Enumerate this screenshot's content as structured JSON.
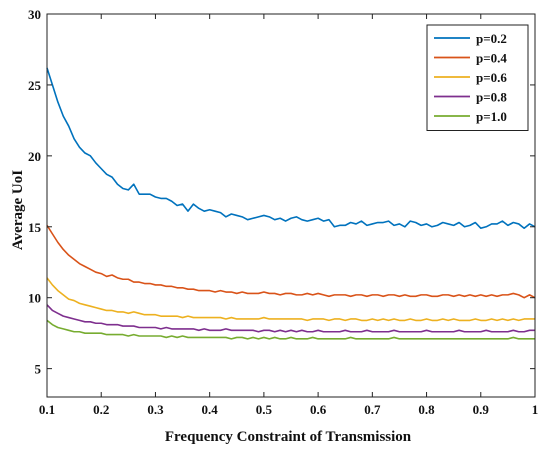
{
  "chart_data": {
    "type": "line",
    "xlabel": "Frequency Constraint of Transmission",
    "ylabel": "Average UoI",
    "xlim": [
      0.1,
      1.0
    ],
    "ylim": [
      3,
      30
    ],
    "x_ticks": [
      0.1,
      0.2,
      0.3,
      0.4,
      0.5,
      0.6,
      0.7,
      0.8,
      0.9,
      1.0
    ],
    "x_tick_labels": [
      "0.1",
      "0.2",
      "0.3",
      "0.4",
      "0.5",
      "0.6",
      "0.7",
      "0.8",
      "0.9",
      "1"
    ],
    "y_ticks": [
      5,
      10,
      15,
      20,
      25,
      30
    ],
    "y_tick_labels": [
      "5",
      "10",
      "15",
      "20",
      "25",
      "30"
    ],
    "grid": false,
    "legend_position": "top-right",
    "x": [
      0.1,
      0.11,
      0.12,
      0.13,
      0.14,
      0.15,
      0.16,
      0.17,
      0.18,
      0.19,
      0.2,
      0.21,
      0.22,
      0.23,
      0.24,
      0.25,
      0.26,
      0.27,
      0.28,
      0.29,
      0.3,
      0.31,
      0.32,
      0.33,
      0.34,
      0.35,
      0.36,
      0.37,
      0.38,
      0.39,
      0.4,
      0.41,
      0.42,
      0.43,
      0.44,
      0.45,
      0.46,
      0.47,
      0.48,
      0.49,
      0.5,
      0.51,
      0.52,
      0.53,
      0.54,
      0.55,
      0.56,
      0.57,
      0.58,
      0.59,
      0.6,
      0.61,
      0.62,
      0.63,
      0.64,
      0.65,
      0.66,
      0.67,
      0.68,
      0.69,
      0.7,
      0.71,
      0.72,
      0.73,
      0.74,
      0.75,
      0.76,
      0.77,
      0.78,
      0.79,
      0.8,
      0.81,
      0.82,
      0.83,
      0.84,
      0.85,
      0.86,
      0.87,
      0.88,
      0.89,
      0.9,
      0.91,
      0.92,
      0.93,
      0.94,
      0.95,
      0.96,
      0.97,
      0.98,
      0.99,
      1.0
    ],
    "series": [
      {
        "name": "p=0.2",
        "color": "#0072BD",
        "values": [
          26.2,
          25.0,
          23.8,
          22.8,
          22.1,
          21.2,
          20.6,
          20.2,
          20.0,
          19.5,
          19.1,
          18.7,
          18.5,
          18.0,
          17.7,
          17.6,
          18.0,
          17.3,
          17.3,
          17.3,
          17.1,
          17.0,
          17.0,
          16.8,
          16.5,
          16.6,
          16.1,
          16.6,
          16.3,
          16.1,
          16.2,
          16.1,
          16.0,
          15.7,
          15.9,
          15.8,
          15.7,
          15.5,
          15.6,
          15.7,
          15.8,
          15.7,
          15.5,
          15.6,
          15.4,
          15.6,
          15.7,
          15.5,
          15.4,
          15.5,
          15.6,
          15.4,
          15.5,
          15.0,
          15.1,
          15.1,
          15.3,
          15.2,
          15.4,
          15.1,
          15.2,
          15.3,
          15.3,
          15.4,
          15.1,
          15.2,
          15.0,
          15.4,
          15.3,
          15.1,
          15.2,
          15.0,
          15.1,
          15.3,
          15.2,
          15.1,
          15.3,
          15.0,
          15.1,
          15.3,
          14.9,
          15.0,
          15.2,
          15.2,
          15.4,
          15.1,
          15.3,
          15.2,
          14.9,
          15.2,
          15.0
        ]
      },
      {
        "name": "p=0.4",
        "color": "#D95319",
        "values": [
          15.1,
          14.5,
          13.9,
          13.4,
          13.0,
          12.7,
          12.4,
          12.2,
          12.0,
          11.8,
          11.7,
          11.5,
          11.6,
          11.4,
          11.3,
          11.3,
          11.1,
          11.1,
          11.0,
          11.0,
          10.9,
          10.9,
          10.8,
          10.8,
          10.7,
          10.7,
          10.6,
          10.6,
          10.5,
          10.5,
          10.5,
          10.4,
          10.5,
          10.4,
          10.4,
          10.3,
          10.4,
          10.3,
          10.3,
          10.3,
          10.4,
          10.3,
          10.3,
          10.2,
          10.3,
          10.3,
          10.2,
          10.2,
          10.3,
          10.2,
          10.3,
          10.2,
          10.1,
          10.2,
          10.2,
          10.2,
          10.1,
          10.2,
          10.2,
          10.1,
          10.2,
          10.2,
          10.1,
          10.2,
          10.2,
          10.1,
          10.2,
          10.1,
          10.1,
          10.2,
          10.2,
          10.1,
          10.1,
          10.2,
          10.2,
          10.1,
          10.2,
          10.1,
          10.2,
          10.1,
          10.2,
          10.1,
          10.2,
          10.1,
          10.2,
          10.2,
          10.3,
          10.2,
          10.0,
          10.2,
          10.0
        ]
      },
      {
        "name": "p=0.6",
        "color": "#EDB120",
        "values": [
          11.4,
          10.9,
          10.5,
          10.2,
          9.9,
          9.8,
          9.6,
          9.5,
          9.4,
          9.3,
          9.2,
          9.1,
          9.1,
          9.0,
          9.0,
          8.9,
          9.0,
          8.9,
          8.8,
          8.8,
          8.8,
          8.7,
          8.7,
          8.7,
          8.7,
          8.6,
          8.7,
          8.6,
          8.6,
          8.6,
          8.6,
          8.6,
          8.6,
          8.5,
          8.6,
          8.5,
          8.5,
          8.5,
          8.5,
          8.5,
          8.6,
          8.5,
          8.5,
          8.5,
          8.5,
          8.5,
          8.5,
          8.5,
          8.4,
          8.5,
          8.5,
          8.5,
          8.4,
          8.5,
          8.5,
          8.4,
          8.5,
          8.5,
          8.4,
          8.4,
          8.5,
          8.4,
          8.5,
          8.4,
          8.5,
          8.4,
          8.4,
          8.5,
          8.4,
          8.4,
          8.5,
          8.4,
          8.4,
          8.5,
          8.4,
          8.5,
          8.4,
          8.4,
          8.4,
          8.5,
          8.4,
          8.4,
          8.5,
          8.4,
          8.5,
          8.4,
          8.5,
          8.4,
          8.5,
          8.5,
          8.5
        ]
      },
      {
        "name": "p=0.8",
        "color": "#7E2F8E",
        "values": [
          9.5,
          9.1,
          8.9,
          8.7,
          8.6,
          8.5,
          8.4,
          8.3,
          8.3,
          8.2,
          8.2,
          8.1,
          8.1,
          8.1,
          8.0,
          8.0,
          8.0,
          7.9,
          7.9,
          7.9,
          7.9,
          7.8,
          7.9,
          7.8,
          7.8,
          7.8,
          7.8,
          7.8,
          7.7,
          7.8,
          7.7,
          7.7,
          7.7,
          7.8,
          7.7,
          7.7,
          7.7,
          7.7,
          7.7,
          7.6,
          7.7,
          7.7,
          7.6,
          7.7,
          7.6,
          7.7,
          7.6,
          7.7,
          7.6,
          7.6,
          7.7,
          7.6,
          7.6,
          7.6,
          7.6,
          7.7,
          7.6,
          7.6,
          7.6,
          7.7,
          7.6,
          7.6,
          7.6,
          7.6,
          7.7,
          7.6,
          7.6,
          7.6,
          7.6,
          7.6,
          7.7,
          7.6,
          7.6,
          7.6,
          7.6,
          7.6,
          7.7,
          7.6,
          7.6,
          7.6,
          7.6,
          7.7,
          7.6,
          7.6,
          7.6,
          7.6,
          7.7,
          7.6,
          7.6,
          7.7,
          7.7
        ]
      },
      {
        "name": "p=1.0",
        "color": "#77AC30",
        "values": [
          8.4,
          8.1,
          7.9,
          7.8,
          7.7,
          7.6,
          7.6,
          7.5,
          7.5,
          7.5,
          7.5,
          7.4,
          7.4,
          7.4,
          7.4,
          7.3,
          7.4,
          7.3,
          7.3,
          7.3,
          7.3,
          7.3,
          7.2,
          7.3,
          7.2,
          7.3,
          7.2,
          7.2,
          7.2,
          7.2,
          7.2,
          7.2,
          7.2,
          7.2,
          7.1,
          7.2,
          7.2,
          7.1,
          7.2,
          7.1,
          7.2,
          7.1,
          7.2,
          7.1,
          7.1,
          7.2,
          7.1,
          7.1,
          7.1,
          7.2,
          7.1,
          7.1,
          7.1,
          7.1,
          7.1,
          7.1,
          7.2,
          7.1,
          7.1,
          7.1,
          7.1,
          7.1,
          7.1,
          7.1,
          7.2,
          7.1,
          7.1,
          7.1,
          7.1,
          7.1,
          7.1,
          7.1,
          7.1,
          7.1,
          7.1,
          7.1,
          7.1,
          7.1,
          7.1,
          7.1,
          7.1,
          7.1,
          7.1,
          7.1,
          7.1,
          7.1,
          7.2,
          7.1,
          7.1,
          7.1,
          7.1
        ]
      }
    ]
  }
}
